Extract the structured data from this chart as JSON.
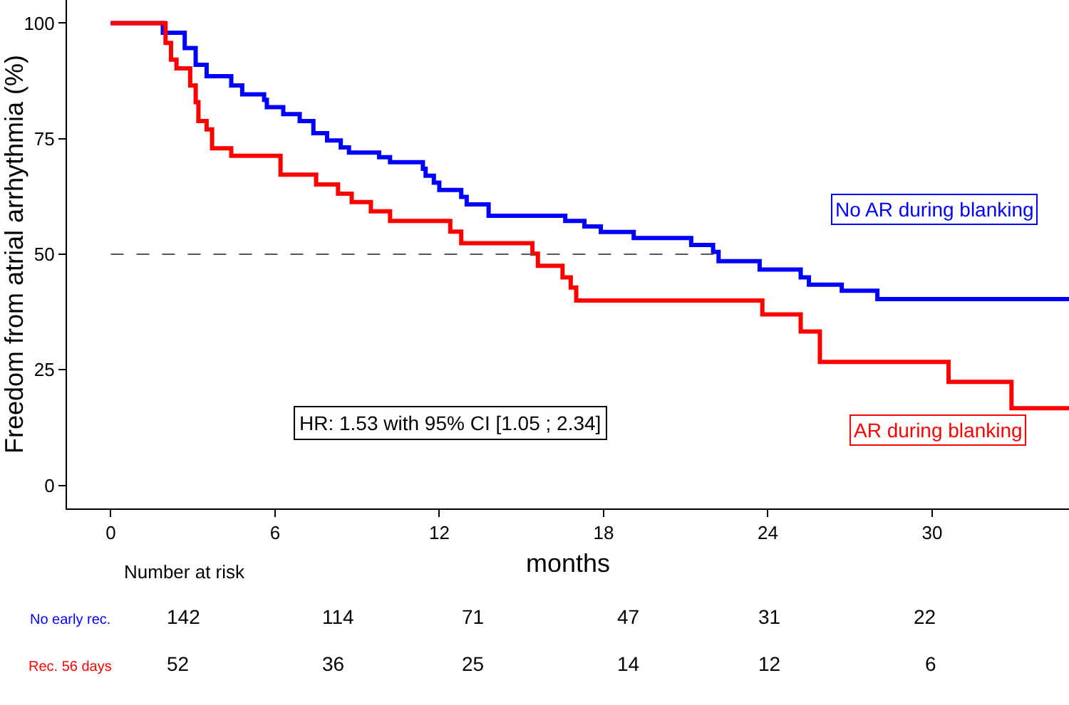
{
  "chart_data": {
    "type": "step",
    "xlabel": "months",
    "ylabel": "Freedom from atrial arrhythmia (%)",
    "xlim": [
      -1.6,
      35
    ],
    "xticks": [
      0,
      6,
      12,
      18,
      24,
      30
    ],
    "ylim": [
      -5,
      105
    ],
    "yticks": [
      0,
      25,
      50,
      75,
      100
    ],
    "marker": "none",
    "line_style": "solid",
    "series": [
      {
        "name": "No AR during blanking",
        "color": "#0000ff",
        "x": [
          0,
          1.9,
          2.7,
          3.1,
          3.5,
          4.4,
          4.8,
          5.6,
          5.7,
          6.3,
          6.9,
          7.4,
          7.9,
          8.4,
          8.7,
          9.8,
          10.2,
          11.4,
          11.5,
          11.8,
          12.0,
          12.8,
          13.0,
          13.8,
          16.6,
          17.3,
          17.9,
          19.1,
          21.2,
          22.0,
          22.2,
          23.7,
          25.2,
          25.5,
          26.7,
          28.0,
          35
        ],
        "values": [
          100,
          97.9,
          94.6,
          91,
          88.5,
          86.5,
          84.6,
          83.4,
          81.8,
          80.3,
          78.8,
          76.2,
          74.6,
          73.1,
          72,
          71,
          69.9,
          68.5,
          67,
          65.5,
          63.9,
          62.4,
          60.8,
          58.3,
          57.2,
          56,
          54.8,
          53.5,
          52,
          50.5,
          48.5,
          46.7,
          45,
          43.4,
          42.1,
          40.3,
          40.3
        ]
      },
      {
        "name": "AR during blanking",
        "color": "#ff0000",
        "x": [
          0,
          2.0,
          2.2,
          2.4,
          2.9,
          3.1,
          3.2,
          3.5,
          3.7,
          4.4,
          6.2,
          7.5,
          8.3,
          8.8,
          9.5,
          10.2,
          12.4,
          12.8,
          15.4,
          15.6,
          16.5,
          16.8,
          17.0,
          23.8,
          25.2,
          25.9,
          30.6,
          32.9,
          35
        ],
        "values": [
          100,
          95.7,
          92.1,
          90.2,
          86.5,
          82.9,
          78.8,
          77,
          72.9,
          71.3,
          67.2,
          65.1,
          63.1,
          61.3,
          59.3,
          57.2,
          54.9,
          52.4,
          50.1,
          47.5,
          45,
          42.8,
          40,
          37,
          33.3,
          26.7,
          22.4,
          16.7,
          16.7
        ]
      }
    ],
    "ref_lines": [
      {
        "axis": "y",
        "value": 50,
        "color": "#555555",
        "line_style": "dashed"
      }
    ],
    "annotations": [
      "HR: 1.53 with 95% CI [1.05 ; 2.34]",
      "Number at risk",
      "No early rec.",
      "142",
      "114",
      "71",
      "47",
      "31",
      "22",
      "Rec. 56 days",
      "52",
      "36",
      "25",
      "14",
      "12",
      "6"
    ]
  }
}
